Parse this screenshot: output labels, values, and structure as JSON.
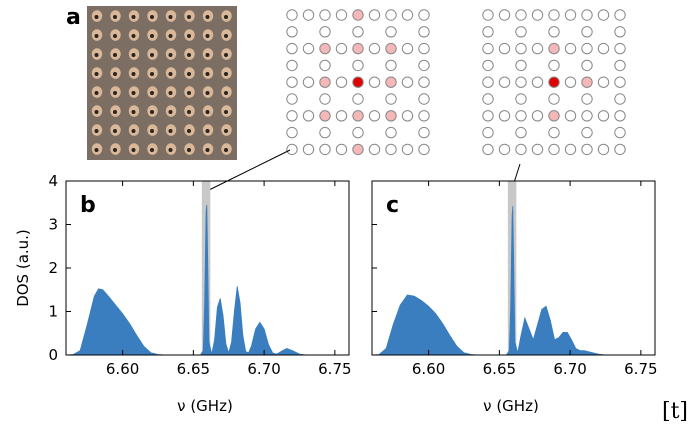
{
  "figure": {
    "panel_labels": {
      "a": "a",
      "b": "b",
      "c": "c"
    },
    "corner_mark": "[t]",
    "colors": {
      "fill": "#3a7ebf",
      "highlight_band": "#c8c8c8",
      "site_outline": "#888888",
      "site_pink": "#f4b8b8",
      "site_red": "#e00000",
      "photo_bg": "#7c6e63"
    }
  },
  "lattices": [
    {
      "rows": 9,
      "cols": 9,
      "site_pattern": [
        "ooooooooo",
        "o.o.o.o.o",
        "ooooooooo",
        "o.o.o.o.o",
        "ooooooooo",
        "o.o.o.o.o",
        "ooooooooo",
        "o.o.o.o.o",
        "ooooooooo"
      ],
      "pink": [
        [
          0,
          4
        ],
        [
          2,
          2
        ],
        [
          2,
          4
        ],
        [
          2,
          6
        ],
        [
          4,
          2
        ],
        [
          4,
          6
        ],
        [
          6,
          2
        ],
        [
          6,
          4
        ],
        [
          6,
          6
        ],
        [
          8,
          4
        ]
      ],
      "red": [
        [
          4,
          4
        ]
      ]
    },
    {
      "rows": 9,
      "cols": 9,
      "site_pattern": [
        "ooooooooo",
        "o.o.o.o.o",
        "ooooooooo",
        "o.o.o.o.o",
        "ooooooooo",
        "o.o.o.o.o",
        "ooooooooo",
        "o.o.o.o.o",
        "ooooooooo"
      ],
      "pink": [
        [
          2,
          4
        ],
        [
          4,
          6
        ],
        [
          6,
          4
        ]
      ],
      "red": [
        [
          4,
          4
        ]
      ]
    }
  ],
  "chart_data": [
    {
      "type": "area",
      "panel": "b",
      "xlabel": "ν (GHz)",
      "ylabel": "DOS (a.u.)",
      "xlim": [
        6.56,
        6.76
      ],
      "ylim": [
        0,
        4
      ],
      "xticks": [
        "6.60",
        "6.65",
        "6.70",
        "6.75"
      ],
      "yticks": [
        "0",
        "1",
        "2",
        "3",
        "4"
      ],
      "highlight_band": [
        6.656,
        6.662
      ],
      "x": [
        6.56,
        6.565,
        6.57,
        6.575,
        6.58,
        6.583,
        6.586,
        6.59,
        6.595,
        6.6,
        6.605,
        6.61,
        6.615,
        6.62,
        6.625,
        6.63,
        6.635,
        6.64,
        6.645,
        6.65,
        6.655,
        6.657,
        6.658,
        6.659,
        6.6595,
        6.66,
        6.661,
        6.663,
        6.665,
        6.667,
        6.669,
        6.671,
        6.673,
        6.675,
        6.677,
        6.679,
        6.681,
        6.683,
        6.685,
        6.687,
        6.689,
        6.691,
        6.694,
        6.697,
        6.7,
        6.703,
        6.706,
        6.709,
        6.712,
        6.716,
        6.72,
        6.725,
        6.73,
        6.76
      ],
      "y": [
        0,
        0.01,
        0.1,
        0.7,
        1.35,
        1.52,
        1.5,
        1.35,
        1.15,
        0.95,
        0.72,
        0.45,
        0.2,
        0.05,
        0.01,
        0,
        0,
        0,
        0,
        0,
        0,
        0.1,
        1.2,
        3.3,
        3.45,
        2.5,
        0.3,
        0.02,
        0.35,
        1.1,
        1.3,
        0.9,
        0.25,
        0.05,
        0.3,
        1.0,
        1.58,
        1.2,
        0.45,
        0.08,
        0.05,
        0.2,
        0.6,
        0.75,
        0.6,
        0.25,
        0.05,
        0.02,
        0.08,
        0.15,
        0.1,
        0.02,
        0,
        0
      ]
    },
    {
      "type": "area",
      "panel": "c",
      "xlabel": "ν (GHz)",
      "ylabel": "",
      "xlim": [
        6.56,
        6.76
      ],
      "ylim": [
        0,
        4
      ],
      "xticks": [
        "6.60",
        "6.65",
        "6.70",
        "6.75"
      ],
      "yticks": [],
      "highlight_band": [
        6.656,
        6.662
      ],
      "x": [
        6.56,
        6.565,
        6.57,
        6.575,
        6.58,
        6.585,
        6.59,
        6.595,
        6.6,
        6.605,
        6.61,
        6.615,
        6.62,
        6.625,
        6.63,
        6.635,
        6.64,
        6.645,
        6.65,
        6.655,
        6.657,
        6.658,
        6.659,
        6.6595,
        6.66,
        6.661,
        6.663,
        6.665,
        6.668,
        6.671,
        6.674,
        6.677,
        6.68,
        6.683,
        6.686,
        6.689,
        6.692,
        6.695,
        6.698,
        6.701,
        6.704,
        6.707,
        6.71,
        6.715,
        6.72,
        6.725,
        6.73,
        6.76
      ],
      "y": [
        0,
        0.01,
        0.15,
        0.7,
        1.15,
        1.38,
        1.35,
        1.25,
        1.12,
        0.95,
        0.72,
        0.45,
        0.2,
        0.05,
        0.01,
        0,
        0,
        0,
        0,
        0,
        0.1,
        1.1,
        3.2,
        3.42,
        2.4,
        0.3,
        0.05,
        0.4,
        0.85,
        0.6,
        0.35,
        0.7,
        1.05,
        1.12,
        0.8,
        0.35,
        0.4,
        0.52,
        0.52,
        0.35,
        0.15,
        0.1,
        0.1,
        0.06,
        0.02,
        0,
        0,
        0
      ]
    }
  ]
}
